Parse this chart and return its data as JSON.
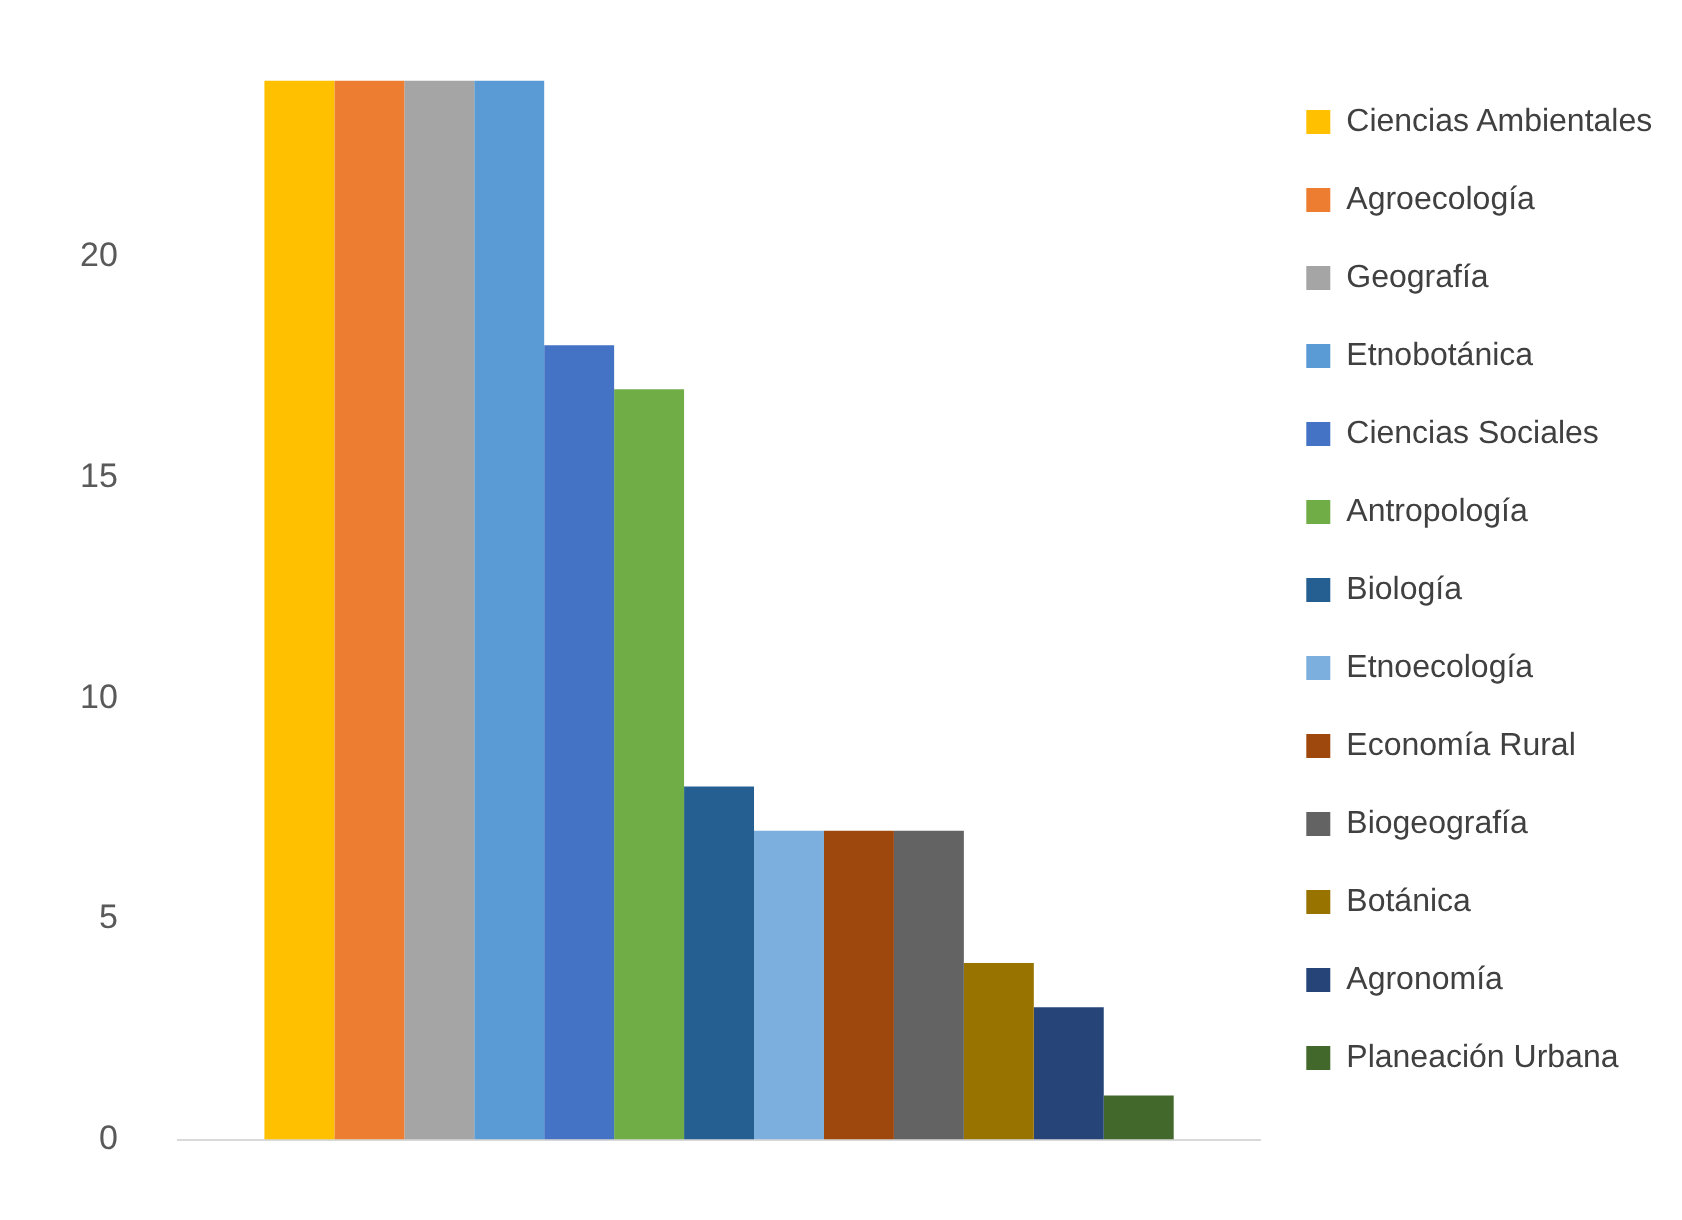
{
  "chart_data": {
    "type": "bar",
    "categories": [
      null
    ],
    "series": [
      {
        "name": "Ciencias Ambientales",
        "color": "#ffc000",
        "values": [
          24
        ]
      },
      {
        "name": "Agroecología",
        "color": "#ed7d31",
        "values": [
          24
        ]
      },
      {
        "name": "Geografía",
        "color": "#a5a5a5",
        "values": [
          24
        ]
      },
      {
        "name": "Etnobotánica",
        "color": "#5b9bd5",
        "values": [
          24
        ]
      },
      {
        "name": "Ciencias Sociales",
        "color": "#4472c4",
        "values": [
          18
        ]
      },
      {
        "name": "Antropología",
        "color": "#70ad47",
        "values": [
          17
        ]
      },
      {
        "name": "Biología",
        "color": "#255e91",
        "values": [
          8
        ]
      },
      {
        "name": "Etnoecología",
        "color": "#7cafdd",
        "values": [
          7
        ]
      },
      {
        "name": "Economía Rural",
        "color": "#9e480e",
        "values": [
          7
        ]
      },
      {
        "name": "Biogeografía",
        "color": "#636363",
        "values": [
          7
        ]
      },
      {
        "name": "Botánica",
        "color": "#997300",
        "values": [
          4
        ]
      },
      {
        "name": "Agronomía",
        "color": "#264478",
        "values": [
          3
        ]
      },
      {
        "name": "Planeación Urbana",
        "color": "#43682b",
        "values": [
          1
        ]
      }
    ],
    "ylim": [
      0,
      24
    ],
    "yticks": [
      0,
      5,
      10,
      15,
      20
    ],
    "grid": false,
    "legend": "right"
  }
}
